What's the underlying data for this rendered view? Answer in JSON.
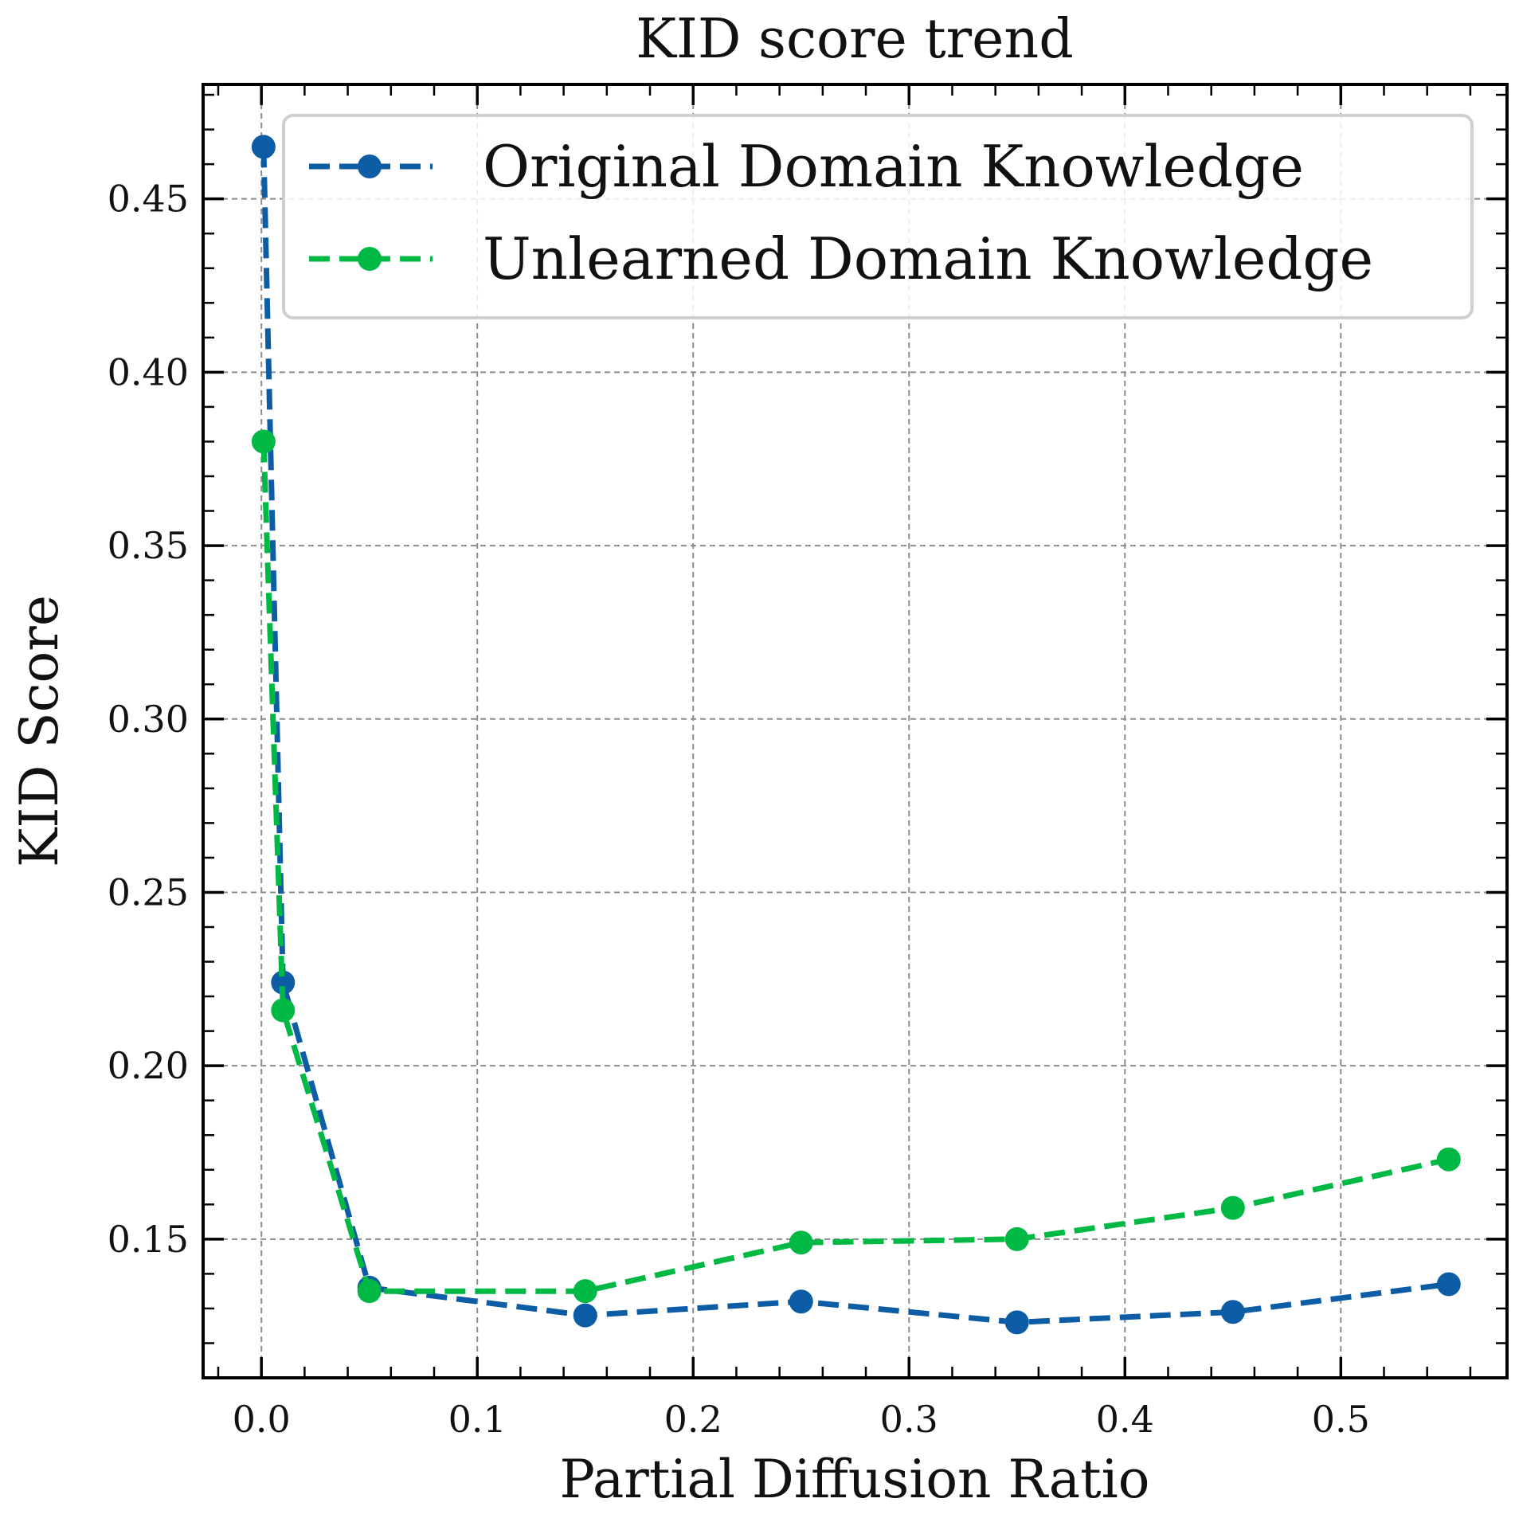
{
  "chart_data": {
    "type": "line",
    "title": "KID score trend",
    "xlabel": "Partial Diffusion Ratio",
    "ylabel": "KID Score",
    "xlim": [
      -0.027,
      0.577
    ],
    "ylim": [
      0.11,
      0.483
    ],
    "xticks": [
      0.0,
      0.1,
      0.2,
      0.3,
      0.4,
      0.5
    ],
    "xtick_labels": [
      "0.0",
      "0.1",
      "0.2",
      "0.3",
      "0.4",
      "0.5"
    ],
    "yticks": [
      0.15,
      0.2,
      0.25,
      0.3,
      0.35,
      0.4,
      0.45
    ],
    "ytick_labels": [
      "0.15",
      "0.20",
      "0.25",
      "0.30",
      "0.35",
      "0.40",
      "0.45"
    ],
    "grid": true,
    "legend_position": "top-right",
    "series": [
      {
        "name": "Original Domain Knowledge",
        "color": "#0C5DA5",
        "x": [
          0.001,
          0.01,
          0.05,
          0.15,
          0.25,
          0.35,
          0.45,
          0.55
        ],
        "y": [
          0.465,
          0.224,
          0.136,
          0.128,
          0.132,
          0.126,
          0.129,
          0.137
        ]
      },
      {
        "name": "Unlearned Domain Knowledge",
        "color": "#00B945",
        "x": [
          0.001,
          0.01,
          0.05,
          0.15,
          0.25,
          0.35,
          0.45,
          0.55
        ],
        "y": [
          0.38,
          0.216,
          0.135,
          0.135,
          0.149,
          0.15,
          0.159,
          0.173
        ]
      }
    ]
  }
}
